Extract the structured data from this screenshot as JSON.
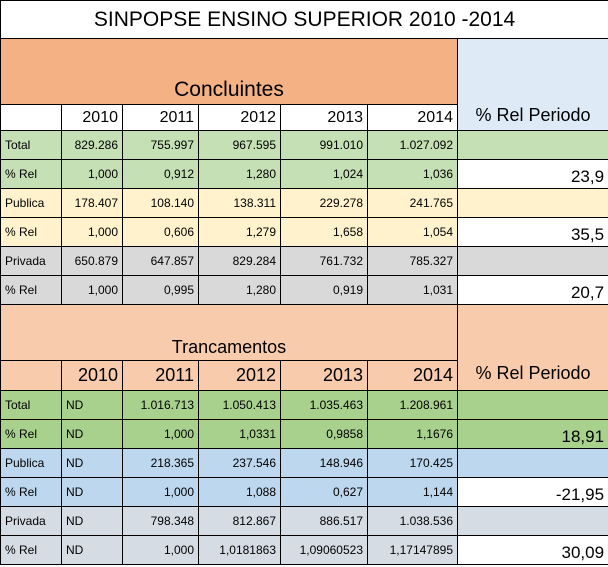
{
  "title": "SINPOPSE ENSINO SUPERIOR  2010 -2014",
  "concluintes": {
    "heading": "Concluintes",
    "rel_header": "% Rel Periodo",
    "years": [
      "2010",
      "2011",
      "2012",
      "2013",
      "2014"
    ],
    "rows": [
      {
        "label": "Total",
        "values": [
          "829.286",
          "755.997",
          "967.595",
          "991.010",
          "1.027.092"
        ],
        "pct": ""
      },
      {
        "label": "% Rel",
        "values": [
          "1,000",
          "0,912",
          "1,280",
          "1,024",
          "1,036"
        ],
        "pct": "23,9"
      },
      {
        "label": "Publica",
        "values": [
          "178.407",
          "108.140",
          "138.311",
          "229.278",
          "241.765"
        ],
        "pct": ""
      },
      {
        "label": "% Rel",
        "values": [
          "1,000",
          "0,606",
          "1,279",
          "1,658",
          "1,054"
        ],
        "pct": "35,5"
      },
      {
        "label": "Privada",
        "values": [
          "650.879",
          "647.857",
          "829.284",
          "761.732",
          "785.327"
        ],
        "pct": ""
      },
      {
        "label": "% Rel",
        "values": [
          "1,000",
          "0,995",
          "1,280",
          "0,919",
          "1,031"
        ],
        "pct": "20,7"
      }
    ]
  },
  "trancamentos": {
    "heading": "Trancamentos",
    "rel_header": "% Rel Periodo",
    "years": [
      "2010",
      "2011",
      "2012",
      "2013",
      "2014"
    ],
    "rows": [
      {
        "label": "Total",
        "values": [
          "ND",
          "1.016.713",
          "1.050.413",
          "1.035.463",
          "1.208.961"
        ],
        "pct": ""
      },
      {
        "label": "% Rel",
        "values": [
          "ND",
          "1,000",
          "1,0331",
          "0,9858",
          "1,1676"
        ],
        "pct": "18,91"
      },
      {
        "label": "Publica",
        "values": [
          "ND",
          "218.365",
          "237.546",
          "148.946",
          "170.425"
        ],
        "pct": ""
      },
      {
        "label": "% Rel",
        "values": [
          "ND",
          "1,000",
          "1,088",
          "0,627",
          "1,144"
        ],
        "pct": "-21,95"
      },
      {
        "label": "Privada",
        "values": [
          "ND",
          "798.348",
          "812.867",
          "886.517",
          "1.038.536"
        ],
        "pct": ""
      },
      {
        "label": "% Rel",
        "values": [
          "ND",
          "1,000",
          "1,0181863",
          "1,09060523",
          "1,17147895"
        ],
        "pct": "30,09"
      }
    ]
  }
}
